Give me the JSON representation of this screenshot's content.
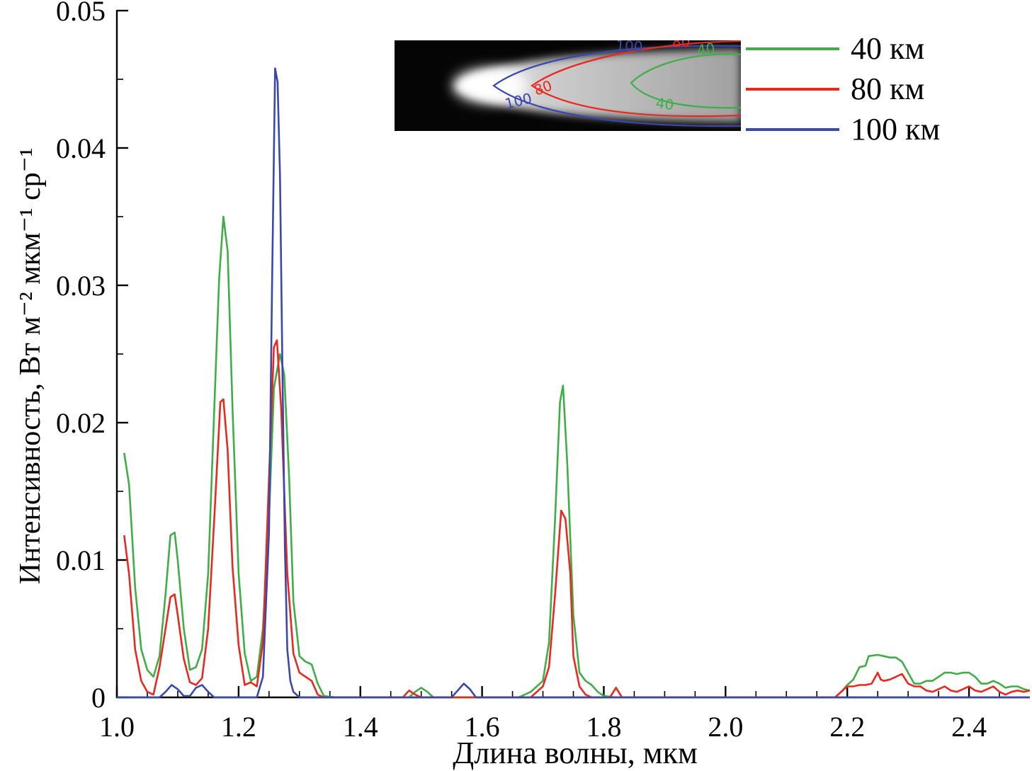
{
  "chart_data": {
    "type": "line",
    "title": "",
    "xlabel": "Длина волны, мкм",
    "ylabel": "Интенсивность, Вт м⁻² мкм⁻¹ ср⁻¹",
    "xlim": [
      1.0,
      2.5
    ],
    "ylim": [
      0,
      0.05
    ],
    "grid": false,
    "legend_position": "top-right",
    "xticks": [
      {
        "v": 1.0,
        "label": "1.0"
      },
      {
        "v": 1.2,
        "label": "1.2"
      },
      {
        "v": 1.4,
        "label": "1.4"
      },
      {
        "v": 1.6,
        "label": "1.6"
      },
      {
        "v": 1.8,
        "label": "1.8"
      },
      {
        "v": 2.0,
        "label": "2.0"
      },
      {
        "v": 2.2,
        "label": "2.2"
      },
      {
        "v": 2.4,
        "label": "2.4"
      }
    ],
    "yticks": [
      {
        "v": 0,
        "label": "0"
      },
      {
        "v": 0.01,
        "label": "0.01"
      },
      {
        "v": 0.02,
        "label": "0.02"
      },
      {
        "v": 0.03,
        "label": "0.03"
      },
      {
        "v": 0.04,
        "label": "0.04"
      },
      {
        "v": 0.05,
        "label": "0.05"
      }
    ],
    "series": [
      {
        "name": "40 км",
        "color": "#3fae46",
        "points": [
          [
            1.012,
            0.0178
          ],
          [
            1.02,
            0.0155
          ],
          [
            1.03,
            0.008
          ],
          [
            1.04,
            0.0035
          ],
          [
            1.05,
            0.002
          ],
          [
            1.06,
            0.0015
          ],
          [
            1.07,
            0.003
          ],
          [
            1.08,
            0.0075
          ],
          [
            1.088,
            0.0118
          ],
          [
            1.095,
            0.012
          ],
          [
            1.1,
            0.01
          ],
          [
            1.11,
            0.005
          ],
          [
            1.12,
            0.002
          ],
          [
            1.13,
            0.0022
          ],
          [
            1.14,
            0.0035
          ],
          [
            1.15,
            0.009
          ],
          [
            1.16,
            0.021
          ],
          [
            1.168,
            0.0305
          ],
          [
            1.175,
            0.035
          ],
          [
            1.182,
            0.0325
          ],
          [
            1.19,
            0.021
          ],
          [
            1.2,
            0.009
          ],
          [
            1.21,
            0.0032
          ],
          [
            1.22,
            0.0012
          ],
          [
            1.23,
            0.0015
          ],
          [
            1.24,
            0.005
          ],
          [
            1.25,
            0.013
          ],
          [
            1.258,
            0.0225
          ],
          [
            1.268,
            0.025
          ],
          [
            1.275,
            0.0235
          ],
          [
            1.283,
            0.016
          ],
          [
            1.29,
            0.007
          ],
          [
            1.3,
            0.003
          ],
          [
            1.31,
            0.0026
          ],
          [
            1.32,
            0.0024
          ],
          [
            1.33,
            0.001
          ],
          [
            1.34,
            0.0001
          ],
          [
            1.36,
            0
          ],
          [
            1.48,
            0
          ],
          [
            1.49,
            0.0004
          ],
          [
            1.5,
            0.0007
          ],
          [
            1.51,
            0.0004
          ],
          [
            1.52,
            0
          ],
          [
            1.66,
            0
          ],
          [
            1.68,
            0.0004
          ],
          [
            1.7,
            0.0012
          ],
          [
            1.71,
            0.004
          ],
          [
            1.72,
            0.013
          ],
          [
            1.728,
            0.0215
          ],
          [
            1.733,
            0.0227
          ],
          [
            1.74,
            0.017
          ],
          [
            1.75,
            0.006
          ],
          [
            1.76,
            0.0018
          ],
          [
            1.77,
            0.0012
          ],
          [
            1.78,
            0.0009
          ],
          [
            1.79,
            0.0004
          ],
          [
            1.8,
            0.0001
          ],
          [
            1.82,
            0
          ],
          [
            2.18,
            0
          ],
          [
            2.19,
            0.0004
          ],
          [
            2.2,
            0.0009
          ],
          [
            2.21,
            0.0013
          ],
          [
            2.22,
            0.0022
          ],
          [
            2.23,
            0.0023
          ],
          [
            2.235,
            0.003
          ],
          [
            2.25,
            0.0031
          ],
          [
            2.26,
            0.003
          ],
          [
            2.27,
            0.0029
          ],
          [
            2.28,
            0.0029
          ],
          [
            2.29,
            0.0026
          ],
          [
            2.3,
            0.0018
          ],
          [
            2.31,
            0.001
          ],
          [
            2.32,
            0.001
          ],
          [
            2.33,
            0.0012
          ],
          [
            2.34,
            0.0012
          ],
          [
            2.35,
            0.0015
          ],
          [
            2.36,
            0.0018
          ],
          [
            2.37,
            0.0018
          ],
          [
            2.38,
            0.0017
          ],
          [
            2.39,
            0.0018
          ],
          [
            2.4,
            0.0018
          ],
          [
            2.41,
            0.0015
          ],
          [
            2.42,
            0.001
          ],
          [
            2.43,
            0.001
          ],
          [
            2.44,
            0.0012
          ],
          [
            2.45,
            0.001
          ],
          [
            2.46,
            0.0007
          ],
          [
            2.47,
            0.0008
          ],
          [
            2.48,
            0.0008
          ],
          [
            2.49,
            0.0006
          ],
          [
            2.5,
            0.0005
          ]
        ]
      },
      {
        "name": "80 км",
        "color": "#e8291f",
        "points": [
          [
            1.012,
            0.0118
          ],
          [
            1.02,
            0.009
          ],
          [
            1.03,
            0.0035
          ],
          [
            1.04,
            0.0012
          ],
          [
            1.05,
            0.0004
          ],
          [
            1.06,
            0.0002
          ],
          [
            1.07,
            0.0022
          ],
          [
            1.08,
            0.005
          ],
          [
            1.088,
            0.0073
          ],
          [
            1.095,
            0.0075
          ],
          [
            1.1,
            0.006
          ],
          [
            1.11,
            0.0028
          ],
          [
            1.12,
            0.0011
          ],
          [
            1.13,
            0.0009
          ],
          [
            1.14,
            0.0014
          ],
          [
            1.15,
            0.005
          ],
          [
            1.16,
            0.013
          ],
          [
            1.17,
            0.0215
          ],
          [
            1.175,
            0.0217
          ],
          [
            1.182,
            0.018
          ],
          [
            1.19,
            0.0095
          ],
          [
            1.2,
            0.0038
          ],
          [
            1.21,
            0.0009
          ],
          [
            1.22,
            0.0011
          ],
          [
            1.23,
            0.0008
          ],
          [
            1.24,
            0.004
          ],
          [
            1.25,
            0.016
          ],
          [
            1.258,
            0.0255
          ],
          [
            1.263,
            0.026
          ],
          [
            1.27,
            0.021
          ],
          [
            1.28,
            0.009
          ],
          [
            1.29,
            0.0032
          ],
          [
            1.3,
            0.0018
          ],
          [
            1.31,
            0.0015
          ],
          [
            1.32,
            0.0012
          ],
          [
            1.33,
            0.0002
          ],
          [
            1.34,
            0
          ],
          [
            1.47,
            0
          ],
          [
            1.48,
            0.0005
          ],
          [
            1.49,
            0.0002
          ],
          [
            1.5,
            0
          ],
          [
            1.68,
            0
          ],
          [
            1.69,
            0.0004
          ],
          [
            1.7,
            0.0008
          ],
          [
            1.71,
            0.0022
          ],
          [
            1.72,
            0.0075
          ],
          [
            1.73,
            0.0136
          ],
          [
            1.737,
            0.013
          ],
          [
            1.745,
            0.009
          ],
          [
            1.75,
            0.003
          ],
          [
            1.76,
            0.0008
          ],
          [
            1.77,
            0.0002
          ],
          [
            1.78,
            0
          ],
          [
            1.81,
            0
          ],
          [
            1.82,
            0.0007
          ],
          [
            1.83,
            0
          ],
          [
            2.18,
            0
          ],
          [
            2.19,
            0.0004
          ],
          [
            2.2,
            0.0008
          ],
          [
            2.21,
            0.0008
          ],
          [
            2.22,
            0.0009
          ],
          [
            2.23,
            0.0009
          ],
          [
            2.24,
            0.001
          ],
          [
            2.25,
            0.0018
          ],
          [
            2.255,
            0.0013
          ],
          [
            2.26,
            0.0012
          ],
          [
            2.27,
            0.0013
          ],
          [
            2.28,
            0.0015
          ],
          [
            2.29,
            0.0017
          ],
          [
            2.3,
            0.001
          ],
          [
            2.31,
            0.0008
          ],
          [
            2.32,
            0.0008
          ],
          [
            2.33,
            0.0005
          ],
          [
            2.34,
            0.0004
          ],
          [
            2.35,
            0.0006
          ],
          [
            2.36,
            0.0008
          ],
          [
            2.37,
            0.0005
          ],
          [
            2.38,
            0.0004
          ],
          [
            2.39,
            0.0006
          ],
          [
            2.4,
            0.0008
          ],
          [
            2.41,
            0.0005
          ],
          [
            2.42,
            0.0004
          ],
          [
            2.43,
            0.0006
          ],
          [
            2.44,
            0.0008
          ],
          [
            2.45,
            0.0004
          ],
          [
            2.46,
            0.0002
          ],
          [
            2.47,
            0.0004
          ],
          [
            2.48,
            0.0005
          ],
          [
            2.49,
            0.0004
          ],
          [
            2.5,
            0.0005
          ]
        ]
      },
      {
        "name": "100 км",
        "color": "#3a47ad",
        "points": [
          [
            1.0,
            0
          ],
          [
            1.07,
            0
          ],
          [
            1.08,
            0.0004
          ],
          [
            1.09,
            0.0009
          ],
          [
            1.1,
            0.0006
          ],
          [
            1.11,
            0.0001
          ],
          [
            1.12,
            0.0001
          ],
          [
            1.13,
            0.0007
          ],
          [
            1.14,
            0.0009
          ],
          [
            1.15,
            0.0004
          ],
          [
            1.16,
            0
          ],
          [
            1.23,
            0
          ],
          [
            1.24,
            0.0015
          ],
          [
            1.25,
            0.012
          ],
          [
            1.255,
            0.03
          ],
          [
            1.26,
            0.0458
          ],
          [
            1.264,
            0.0448
          ],
          [
            1.268,
            0.038
          ],
          [
            1.272,
            0.024
          ],
          [
            1.276,
            0.011
          ],
          [
            1.28,
            0.0035
          ],
          [
            1.285,
            0.0012
          ],
          [
            1.29,
            0.0004
          ],
          [
            1.3,
            0
          ],
          [
            1.55,
            0
          ],
          [
            1.56,
            0.0005
          ],
          [
            1.57,
            0.001
          ],
          [
            1.58,
            0.0006
          ],
          [
            1.59,
            0
          ],
          [
            2.5,
            0
          ]
        ]
      }
    ]
  },
  "inset": {
    "contours": [
      {
        "label": "100",
        "color": "#3a47ad"
      },
      {
        "label": "80",
        "color": "#e8291f"
      },
      {
        "label": "40",
        "color": "#3fae46"
      }
    ]
  }
}
